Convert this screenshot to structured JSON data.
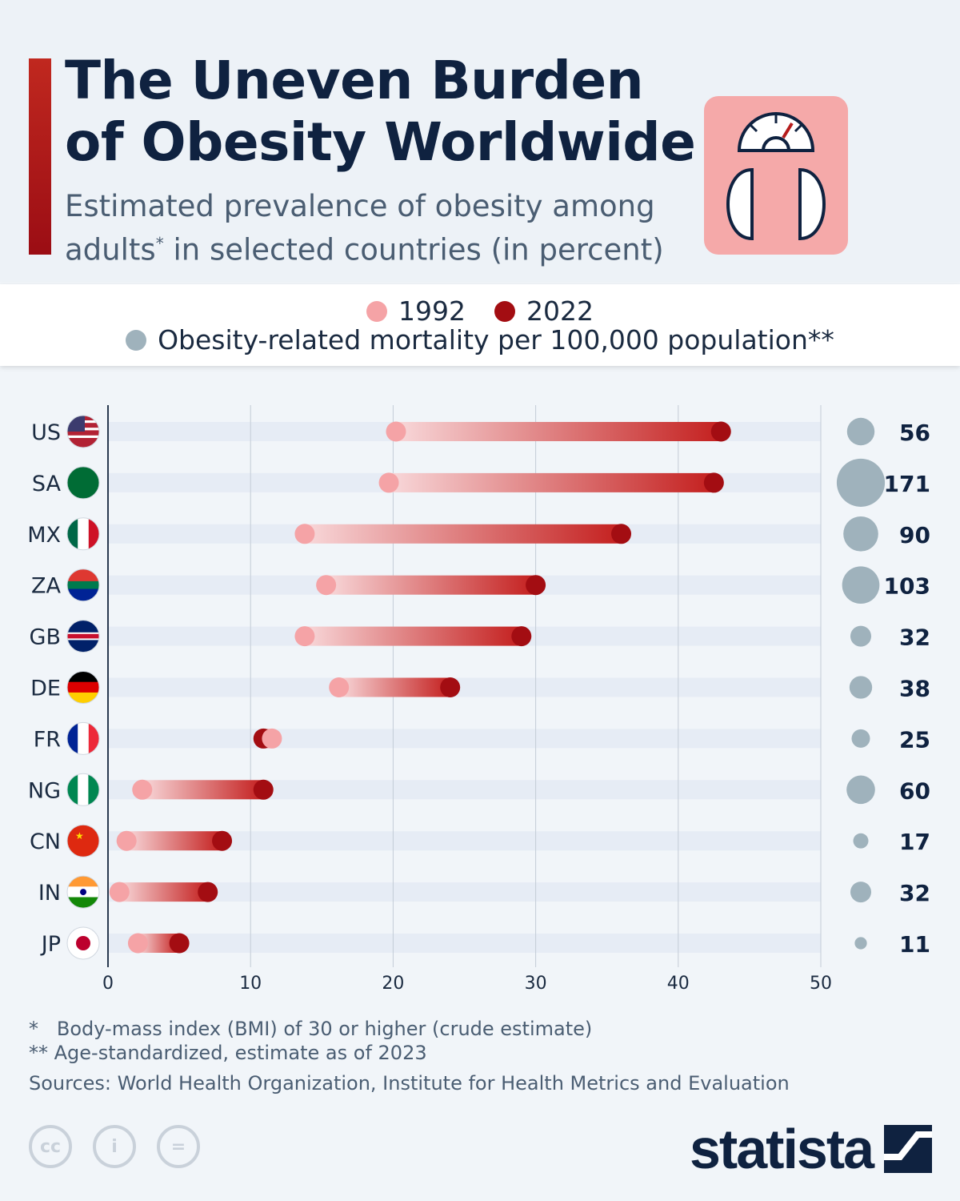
{
  "header": {
    "title_line1": "The Uneven Burden",
    "title_line2": "of Obesity Worldwide",
    "subtitle_line1": "Estimated prevalence of obesity among",
    "subtitle_line2a": "adults",
    "subtitle_sup": "*",
    "subtitle_line2b": " in selected countries (in percent)",
    "icon": "bathroom-scale-icon"
  },
  "legend": {
    "label_1992": "1992",
    "label_2022": "2022",
    "label_mortality": "Obesity-related mortality per 100,000 population**"
  },
  "colors": {
    "y1992": "#f5a3a6",
    "y2022": "#a30d12",
    "mortality": "#9fb2bc",
    "row_band": "#e6ecf5",
    "accent": "#b51c1c"
  },
  "chart_data": {
    "type": "dumbbell",
    "xlim": [
      0,
      50
    ],
    "xticks": [
      "0",
      "10",
      "20",
      "30",
      "40",
      "50"
    ],
    "grid": true,
    "countries": [
      "US",
      "SA",
      "MX",
      "ZA",
      "GB",
      "DE",
      "FR",
      "NG",
      "CN",
      "IN",
      "JP"
    ],
    "series": [
      {
        "name": "1992",
        "values": [
          20.2,
          19.7,
          13.8,
          15.3,
          13.8,
          16.2,
          11.5,
          2.4,
          1.3,
          0.8,
          2.1
        ]
      },
      {
        "name": "2022",
        "values": [
          43.0,
          42.5,
          36.0,
          30.0,
          29.0,
          24.0,
          10.9,
          10.9,
          8.0,
          7.0,
          5.0
        ]
      }
    ],
    "mortality": {
      "name": "Obesity-related mortality per 100,000 population**",
      "values": [
        "56",
        "171",
        "90",
        "103",
        "32",
        "38",
        "25",
        "60",
        "17",
        "32",
        "11"
      ]
    }
  },
  "notes": {
    "note1": "*   Body-mass index (BMI) of 30 or higher (crude estimate)",
    "note2": "** Age-standardized, estimate as of 2023",
    "sources": "Sources: World Health Organization, Institute for Health Metrics and Evaluation"
  },
  "footer": {
    "logo": "statista",
    "cc_icons": [
      "cc",
      "by",
      "nd"
    ]
  }
}
